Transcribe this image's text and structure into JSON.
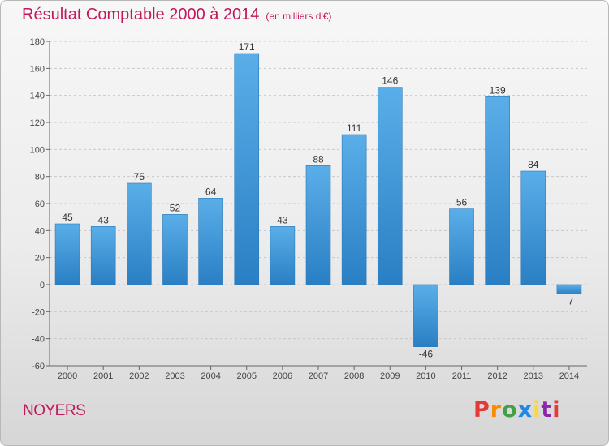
{
  "header": {
    "title": "Résultat Comptable 2000 à 2014",
    "unit": "(en milliers d'€)"
  },
  "commune": "NOYERS",
  "brand": {
    "name": "Proxiti",
    "letters": [
      "P",
      "r",
      "o",
      "x",
      "i",
      "t",
      "i"
    ],
    "letter_colors": [
      "#e53935",
      "#fb8c00",
      "#43a047",
      "#1e88e5",
      "#fdd835",
      "#8e24aa",
      "#e53935"
    ]
  },
  "colors": {
    "bar_light": "#5aaee8",
    "bar_dark": "#2a7fc4",
    "title": "#c2185b",
    "grid": "#c8c8c8"
  },
  "chart_data": {
    "type": "bar",
    "title": "Résultat Comptable 2000 à 2014",
    "subtitle": "(en milliers d'€)",
    "xlabel": "",
    "ylabel": "",
    "categories": [
      "2000",
      "2001",
      "2002",
      "2003",
      "2004",
      "2005",
      "2006",
      "2007",
      "2008",
      "2009",
      "2010",
      "2011",
      "2012",
      "2013",
      "2014"
    ],
    "values": [
      45,
      43,
      75,
      52,
      64,
      171,
      43,
      88,
      111,
      146,
      -46,
      56,
      139,
      84,
      -7
    ],
    "data_labels": [
      "45",
      "43",
      "75",
      "52",
      "64",
      "171",
      "43",
      "88",
      "111",
      "146",
      "-46",
      "56",
      "139",
      "84",
      "-7"
    ],
    "ylim": [
      -60,
      180
    ],
    "yticks": [
      -60,
      -40,
      -20,
      0,
      20,
      40,
      60,
      80,
      100,
      120,
      140,
      160,
      180
    ],
    "grid": true,
    "legend": "none"
  }
}
